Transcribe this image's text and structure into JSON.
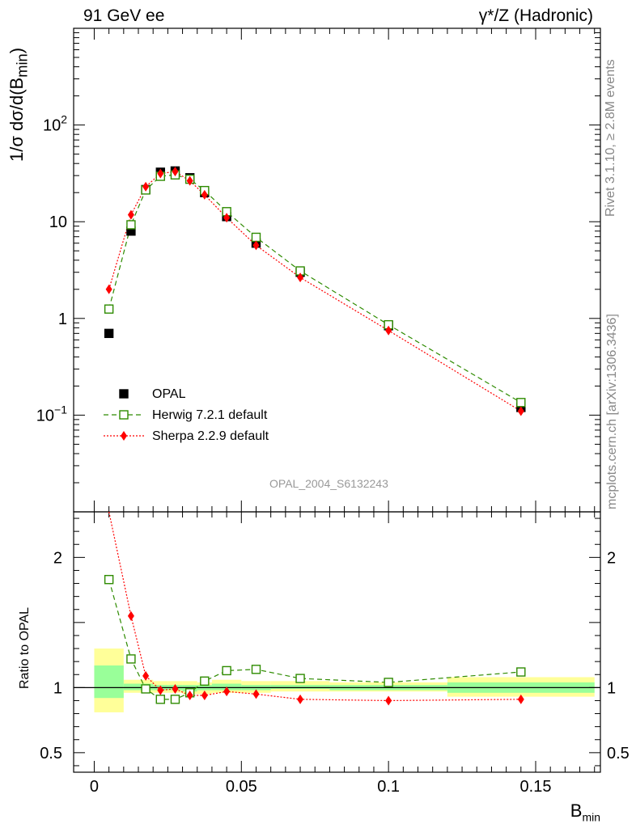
{
  "header": {
    "left": "91 GeV ee",
    "right": "γ*/Z (Hadronic)"
  },
  "side_texts": {
    "rivet": "Rivet 3.1.10, ≥ 2.8M events",
    "mcplots": "mcplots.cern.ch [arXiv:1306.3436]"
  },
  "watermark": "OPAL_2004_S6132243",
  "colors": {
    "data": "#000000",
    "herwig": "#2e8b00",
    "sherpa": "#ff0000",
    "band_inner": "#99ff99",
    "band_outer": "#ffff99"
  },
  "chart_data": [
    {
      "type": "scatter",
      "panel": "main",
      "ylabel": "1/σ dσ/d(B_min)",
      "yscale": "log",
      "ylim": [
        0.01,
        1000
      ],
      "xlim": [
        -0.007,
        0.172
      ],
      "yticks": [
        "10^-1",
        "1",
        "10",
        "10^2"
      ],
      "legend": {
        "position": "lower-left",
        "entries": [
          "OPAL",
          "Herwig 7.2.1 default",
          "Sherpa 2.2.9 default"
        ]
      },
      "x": [
        0.005,
        0.0125,
        0.0175,
        0.0225,
        0.0275,
        0.0325,
        0.0375,
        0.045,
        0.055,
        0.07,
        0.1,
        0.145
      ],
      "series": [
        {
          "name": "OPAL",
          "values": [
            0.7,
            8.0,
            21.5,
            32.5,
            33.5,
            28.5,
            20.0,
            11.3,
            6.0,
            3.0,
            0.84,
            0.12
          ]
        },
        {
          "name": "Herwig 7.2.1 default",
          "values": [
            1.25,
            9.3,
            21.3,
            29.5,
            30.5,
            27.5,
            21.0,
            12.7,
            6.9,
            3.1,
            0.86,
            0.135
          ]
        },
        {
          "name": "Sherpa 2.2.9 default",
          "values": [
            2.0,
            11.8,
            23.0,
            31.5,
            33.0,
            26.5,
            19.0,
            11.0,
            5.7,
            2.65,
            0.75,
            0.11
          ]
        }
      ]
    },
    {
      "type": "line",
      "panel": "ratio",
      "ylabel": "Ratio to OPAL",
      "xlabel": "B_min",
      "ylim": [
        0.35,
        2.35
      ],
      "xlim": [
        -0.007,
        0.172
      ],
      "yticks": [
        "0.5",
        "1",
        "2"
      ],
      "xticks": [
        "0",
        "0.05",
        "0.1",
        "0.15"
      ],
      "x": [
        0.005,
        0.0125,
        0.0175,
        0.0225,
        0.0275,
        0.0325,
        0.0375,
        0.045,
        0.055,
        0.07,
        0.1,
        0.145
      ],
      "series": [
        {
          "name": "Herwig 7.2.1 default",
          "values": [
            1.83,
            1.22,
            0.99,
            0.91,
            0.91,
            0.96,
            1.05,
            1.13,
            1.14,
            1.07,
            1.04,
            1.12
          ]
        },
        {
          "name": "Sherpa 2.2.9 default",
          "values": [
            2.9,
            1.55,
            1.09,
            0.98,
            0.99,
            0.94,
            0.94,
            0.97,
            0.95,
            0.91,
            0.9,
            0.91
          ]
        }
      ],
      "bands": [
        {
          "x0": 0.0,
          "x1": 0.01,
          "inner": [
            0.92,
            1.17
          ],
          "outer": [
            0.81,
            1.3
          ]
        },
        {
          "x0": 0.01,
          "x1": 0.02,
          "inner": [
            0.98,
            1.03
          ],
          "outer": [
            0.96,
            1.06
          ]
        },
        {
          "x0": 0.02,
          "x1": 0.025,
          "inner": [
            0.98,
            1.02
          ],
          "outer": [
            0.96,
            1.05
          ]
        },
        {
          "x0": 0.025,
          "x1": 0.03,
          "inner": [
            0.98,
            1.02
          ],
          "outer": [
            0.96,
            1.05
          ]
        },
        {
          "x0": 0.03,
          "x1": 0.035,
          "inner": [
            0.97,
            1.02
          ],
          "outer": [
            0.95,
            1.05
          ]
        },
        {
          "x0": 0.035,
          "x1": 0.04,
          "inner": [
            0.98,
            1.02
          ],
          "outer": [
            0.95,
            1.04
          ]
        },
        {
          "x0": 0.04,
          "x1": 0.05,
          "inner": [
            0.98,
            1.03
          ],
          "outer": [
            0.96,
            1.06
          ]
        },
        {
          "x0": 0.05,
          "x1": 0.06,
          "inner": [
            0.98,
            1.02
          ],
          "outer": [
            0.96,
            1.05
          ]
        },
        {
          "x0": 0.06,
          "x1": 0.08,
          "inner": [
            0.99,
            1.02
          ],
          "outer": [
            0.97,
            1.05
          ]
        },
        {
          "x0": 0.08,
          "x1": 0.12,
          "inner": [
            0.98,
            1.02
          ],
          "outer": [
            0.97,
            1.04
          ]
        },
        {
          "x0": 0.12,
          "x1": 0.17,
          "inner": [
            0.96,
            1.04
          ],
          "outer": [
            0.93,
            1.08
          ]
        }
      ]
    }
  ]
}
